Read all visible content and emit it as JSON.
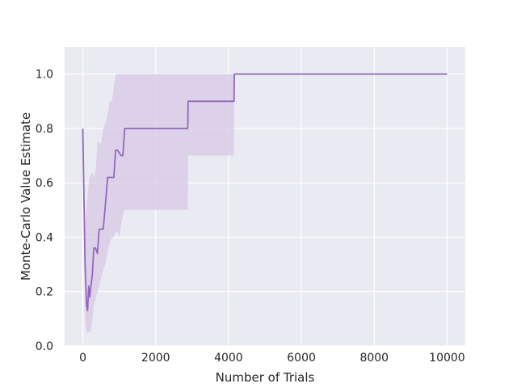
{
  "chart_data": {
    "type": "line",
    "title": "",
    "xlabel": "Number of Trials",
    "ylabel": "Monte-Carlo Value Estimate",
    "xlim": [
      -500,
      10500
    ],
    "ylim": [
      0.0,
      1.1
    ],
    "xticks": [
      0,
      2000,
      4000,
      6000,
      8000,
      10000
    ],
    "yticks": [
      0.0,
      0.2,
      0.4,
      0.6,
      0.8,
      1.0
    ],
    "xtick_labels": [
      "0",
      "2000",
      "4000",
      "6000",
      "8000",
      "10000"
    ],
    "ytick_labels": [
      "0.0",
      "0.2",
      "0.4",
      "0.6",
      "0.8",
      "1.0"
    ],
    "grid": true,
    "background_color": "#eaeaf2",
    "series_color": "#9467bd",
    "band_color": "#d7c8e6",
    "series": [
      {
        "name": "",
        "x": [
          0,
          60,
          100,
          130,
          160,
          190,
          220,
          260,
          300,
          350,
          400,
          450,
          500,
          560,
          620,
          680,
          740,
          800,
          850,
          900,
          950,
          1000,
          1050,
          1100,
          1150,
          1500,
          2000,
          2500,
          2880,
          2890,
          3500,
          4000,
          4150,
          4160,
          6000,
          8000,
          10000
        ],
        "y": [
          0.8,
          0.3,
          0.15,
          0.13,
          0.22,
          0.18,
          0.22,
          0.26,
          0.36,
          0.36,
          0.34,
          0.43,
          0.43,
          0.43,
          0.52,
          0.62,
          0.62,
          0.62,
          0.62,
          0.72,
          0.72,
          0.71,
          0.7,
          0.7,
          0.8,
          0.8,
          0.8,
          0.8,
          0.8,
          0.9,
          0.9,
          0.9,
          0.9,
          1.0,
          1.0,
          1.0,
          1.0
        ],
        "ci_lower": [
          0.8,
          0.1,
          0.05,
          0.05,
          0.05,
          0.05,
          0.06,
          0.1,
          0.15,
          0.17,
          0.2,
          0.22,
          0.25,
          0.28,
          0.3,
          0.35,
          0.38,
          0.4,
          0.4,
          0.42,
          0.42,
          0.4,
          0.45,
          0.48,
          0.5,
          0.5,
          0.5,
          0.5,
          0.5,
          0.7,
          0.7,
          0.7,
          0.7,
          1.0,
          1.0,
          1.0,
          1.0
        ],
        "ci_upper": [
          0.8,
          0.45,
          0.5,
          0.55,
          0.6,
          0.62,
          0.63,
          0.64,
          0.62,
          0.64,
          0.75,
          0.75,
          0.74,
          0.8,
          0.82,
          0.85,
          0.9,
          0.9,
          0.95,
          1.0,
          1.0,
          1.0,
          1.0,
          1.0,
          1.0,
          1.0,
          1.0,
          1.0,
          1.0,
          1.0,
          1.0,
          1.0,
          1.0,
          1.0,
          1.0,
          1.0,
          1.0
        ]
      }
    ]
  }
}
